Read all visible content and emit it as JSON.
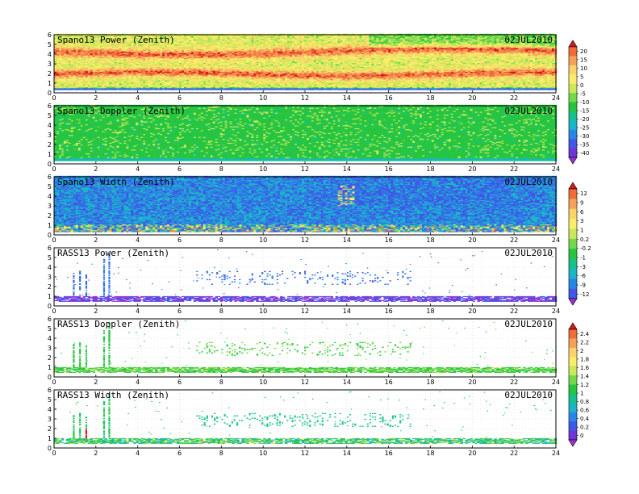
{
  "chart_data": [
    {
      "type": "heatmap",
      "title": "Spano13 Power (Zenith)",
      "date": "02JUL2010",
      "xlim": [
        0,
        24
      ],
      "ylim": [
        0,
        6
      ],
      "xticks": [
        0,
        2,
        4,
        6,
        8,
        10,
        12,
        14,
        16,
        18,
        20,
        22,
        24
      ],
      "yticks": [
        0,
        1,
        2,
        3,
        4,
        5,
        6
      ],
      "colorbar": {
        "id": "cb1"
      },
      "pattern": "power_dense"
    },
    {
      "type": "heatmap",
      "title": "Spano13 Doppler (Zenith)",
      "date": "02JUL2010",
      "xlim": [
        0,
        24
      ],
      "ylim": [
        0,
        6
      ],
      "xticks": [
        0,
        2,
        4,
        6,
        8,
        10,
        12,
        14,
        16,
        18,
        20,
        22,
        24
      ],
      "yticks": [
        0,
        1,
        2,
        3,
        4,
        5,
        6
      ],
      "colorbar": {
        "id": "cb1"
      },
      "pattern": "doppler_dense"
    },
    {
      "type": "heatmap",
      "title": "Spano13 Width (Zenith)",
      "date": "02JUL2010",
      "xlim": [
        0,
        24
      ],
      "ylim": [
        0,
        6
      ],
      "xticks": [
        0,
        2,
        4,
        6,
        8,
        10,
        12,
        14,
        16,
        18,
        20,
        22,
        24
      ],
      "yticks": [
        0,
        1,
        2,
        3,
        4,
        5,
        6
      ],
      "colorbar": {
        "id": "cb2"
      },
      "pattern": "width_dense"
    },
    {
      "type": "heatmap",
      "title": "RASS13 Power (Zenith)",
      "date": "02JUL2010",
      "xlim": [
        0,
        24
      ],
      "ylim": [
        0,
        6
      ],
      "xticks": [
        0,
        2,
        4,
        6,
        8,
        10,
        12,
        14,
        16,
        18,
        20,
        22,
        24
      ],
      "yticks": [
        0,
        1,
        2,
        3,
        4,
        5,
        6
      ],
      "colorbar": {
        "id": "cb2"
      },
      "pattern": "rass_power"
    },
    {
      "type": "heatmap",
      "title": "RASS13 Doppler (Zenith)",
      "date": "02JUL2010",
      "xlim": [
        0,
        24
      ],
      "ylim": [
        0,
        6
      ],
      "xticks": [
        0,
        2,
        4,
        6,
        8,
        10,
        12,
        14,
        16,
        18,
        20,
        22,
        24
      ],
      "yticks": [
        0,
        1,
        2,
        3,
        4,
        5,
        6
      ],
      "colorbar": {
        "id": "cb3"
      },
      "pattern": "rass_doppler"
    },
    {
      "type": "heatmap",
      "title": "RASS13 Width (Zenith)",
      "date": "02JUL2010",
      "xlim": [
        0,
        24
      ],
      "ylim": [
        0,
        6
      ],
      "xticks": [
        0,
        2,
        4,
        6,
        8,
        10,
        12,
        14,
        16,
        18,
        20,
        22,
        24
      ],
      "yticks": [
        0,
        1,
        2,
        3,
        4,
        5,
        6
      ],
      "colorbar": {
        "id": "cb3"
      },
      "pattern": "rass_width"
    }
  ],
  "colorbars": [
    {
      "id": "cb1",
      "labels": [
        "20",
        "15",
        "10",
        "5",
        "0",
        "-5",
        "-10",
        "-15",
        "-20",
        "-25",
        "-30",
        "-35",
        "-40"
      ],
      "colors": [
        "#d7191c",
        "#f16c3a",
        "#f4a259",
        "#fdd36a",
        "#f8ee6a",
        "#c9e85a",
        "#73d94a",
        "#27c53f",
        "#16c28a",
        "#1ab6c8",
        "#2a86e6",
        "#3f58e8",
        "#6f35d9",
        "#9b31d1"
      ]
    },
    {
      "id": "cb2",
      "labels": [
        "12",
        "9",
        "6",
        "3",
        "1",
        "0.2",
        "-0.2",
        "-1",
        "-3",
        "-6",
        "-9",
        "-12"
      ],
      "colors": [
        "#d7191c",
        "#f16c3a",
        "#f4a259",
        "#fdd36a",
        "#f8ee6a",
        "#c9e85a",
        "#73d94a",
        "#27c53f",
        "#16c28a",
        "#1ab6c8",
        "#2a86e6",
        "#3f58e8",
        "#9b31d1"
      ]
    },
    {
      "id": "cb3",
      "labels": [
        "2.4",
        "2.2",
        "2",
        "1.8",
        "1.6",
        "1.4",
        "1.2",
        "1",
        "0.8",
        "0.6",
        "0.4",
        "0.2",
        "0"
      ],
      "colors": [
        "#d7191c",
        "#f16c3a",
        "#f4a259",
        "#fdd36a",
        "#f8ee6a",
        "#c9e85a",
        "#73d94a",
        "#27c53f",
        "#16c28a",
        "#1ab6c8",
        "#2a86e6",
        "#3f58e8",
        "#6f35d9",
        "#9b31d1"
      ]
    }
  ]
}
